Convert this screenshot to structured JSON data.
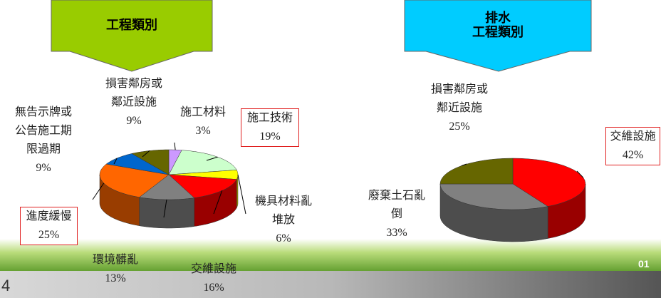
{
  "chart_data": [
    {
      "type": "pie",
      "title": "工程類別",
      "categories": [
        "施工材料",
        "施工技術",
        "機具材料亂堆放",
        "交維設施",
        "環境髒亂",
        "進度緩慢",
        "無告示牌或公告施工期限過期",
        "損害鄰房或鄰近設施"
      ],
      "values": [
        3,
        19,
        6,
        16,
        13,
        25,
        9,
        9
      ],
      "value_labels": [
        "3%",
        "19%",
        "6%",
        "16%",
        "13%",
        "25%",
        "9%",
        "9%"
      ],
      "colors": [
        "#cc99ff",
        "#ccffcc",
        "#ffff00",
        "#ff0000",
        "#808080",
        "#ff6600",
        "#0066cc",
        "#666600"
      ]
    },
    {
      "type": "pie",
      "title": "排水\n工程類別",
      "categories": [
        "交維設施",
        "廢棄土石亂倒",
        "損害鄰房或鄰近設施"
      ],
      "values": [
        42,
        33,
        25
      ],
      "value_labels": [
        "42%",
        "33%",
        "25%"
      ],
      "colors": [
        "#ff0000",
        "#808080",
        "#666600"
      ]
    }
  ],
  "slide": {
    "number": "4",
    "corner": "01"
  }
}
